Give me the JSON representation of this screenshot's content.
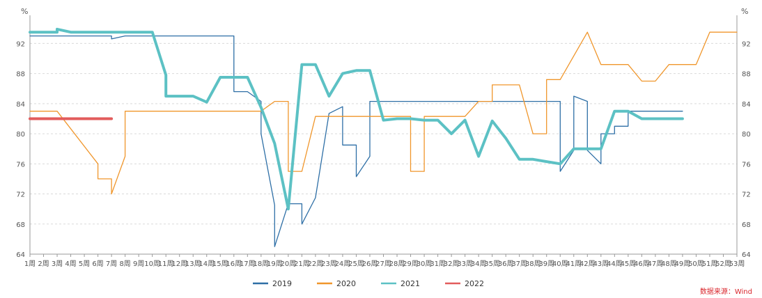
{
  "chart_data": {
    "type": "line",
    "unit_left": "%",
    "unit_right": "%",
    "ylim": [
      64,
      95
    ],
    "y_ticks": [
      64,
      68,
      72,
      76,
      80,
      84,
      88,
      92
    ],
    "x_ticks": [
      "1周",
      "2周",
      "3周",
      "4周",
      "5周",
      "6周",
      "7周",
      "8周",
      "9周",
      "10周",
      "11周",
      "12周",
      "13周",
      "14周",
      "15周",
      "16周",
      "17周",
      "18周",
      "19周",
      "20周",
      "21周",
      "22周",
      "23周",
      "24周",
      "25周",
      "26周",
      "27周",
      "28周",
      "29周",
      "30周",
      "31周",
      "32周",
      "33周",
      "34周",
      "35周",
      "36周",
      "37周",
      "38周",
      "39周",
      "40周",
      "41周",
      "42周",
      "43周",
      "44周",
      "45周",
      "46周",
      "47周",
      "48周",
      "49周",
      "50周",
      "51周",
      "52周",
      "53周"
    ],
    "grid": "horizontal dashed",
    "legend_position": "bottom-center",
    "source": "数据来源：Wind",
    "series": [
      {
        "name": "2019",
        "color": "#2e6fa6",
        "stroke_width": 1.3,
        "points": [
          [
            1,
            93
          ],
          [
            7,
            93
          ],
          [
            7,
            92.6
          ],
          [
            8,
            93
          ],
          [
            16,
            93
          ],
          [
            16,
            85.6
          ],
          [
            17,
            85.6
          ],
          [
            18,
            84.3
          ],
          [
            18,
            80
          ],
          [
            19,
            70.5
          ],
          [
            19,
            65
          ],
          [
            20,
            70.7
          ],
          [
            21,
            70.7
          ],
          [
            21,
            68
          ],
          [
            22,
            71.5
          ],
          [
            23,
            82.7
          ],
          [
            24,
            83.6
          ],
          [
            24,
            78.5
          ],
          [
            25,
            78.5
          ],
          [
            25,
            74.3
          ],
          [
            26,
            77
          ],
          [
            26,
            84.3
          ],
          [
            40,
            84.3
          ],
          [
            40,
            75
          ],
          [
            41,
            77.8
          ],
          [
            41,
            85
          ],
          [
            42,
            84.3
          ],
          [
            42,
            77.8
          ],
          [
            43,
            76
          ],
          [
            43,
            80
          ],
          [
            44,
            80
          ],
          [
            44,
            81
          ],
          [
            45,
            81
          ],
          [
            45,
            83
          ],
          [
            49,
            83
          ]
        ]
      },
      {
        "name": "2020",
        "color": "#f0962b",
        "stroke_width": 1.3,
        "points": [
          [
            1,
            83
          ],
          [
            3,
            83
          ],
          [
            6,
            76
          ],
          [
            6,
            74
          ],
          [
            7,
            74
          ],
          [
            7,
            72
          ],
          [
            8,
            77
          ],
          [
            8,
            83
          ],
          [
            18,
            83
          ],
          [
            19,
            84.3
          ],
          [
            20,
            84.3
          ],
          [
            20,
            75
          ],
          [
            21,
            75
          ],
          [
            22,
            82.3
          ],
          [
            29,
            82.3
          ],
          [
            29,
            75
          ],
          [
            30,
            75
          ],
          [
            30,
            82.3
          ],
          [
            33,
            82.3
          ],
          [
            34,
            84.3
          ],
          [
            35,
            84.3
          ],
          [
            35,
            86.5
          ],
          [
            37,
            86.5
          ],
          [
            38,
            80
          ],
          [
            39,
            80
          ],
          [
            39,
            87.2
          ],
          [
            40,
            87.2
          ],
          [
            42,
            93.5
          ],
          [
            43,
            89.2
          ],
          [
            45,
            89.2
          ],
          [
            46,
            87
          ],
          [
            47,
            87
          ],
          [
            48,
            89.2
          ],
          [
            50,
            89.2
          ],
          [
            51,
            93.5
          ],
          [
            53,
            93.5
          ]
        ]
      },
      {
        "name": "2021",
        "color": "#5cc1c4",
        "stroke_width": 4,
        "points": [
          [
            1,
            93.5
          ],
          [
            3,
            93.5
          ],
          [
            3,
            93.9
          ],
          [
            4,
            93.5
          ],
          [
            10,
            93.5
          ],
          [
            11,
            87.8
          ],
          [
            11,
            85
          ],
          [
            13,
            85
          ],
          [
            14,
            84.2
          ],
          [
            15,
            87.5
          ],
          [
            17,
            87.5
          ],
          [
            18,
            83.5
          ],
          [
            19,
            78.7
          ],
          [
            20,
            70
          ],
          [
            21,
            89.2
          ],
          [
            22,
            89.2
          ],
          [
            23,
            85
          ],
          [
            24,
            88
          ],
          [
            25,
            88.4
          ],
          [
            26,
            88.4
          ],
          [
            27,
            81.8
          ],
          [
            28,
            82
          ],
          [
            29,
            82
          ],
          [
            30,
            81.8
          ],
          [
            31,
            81.8
          ],
          [
            32,
            80
          ],
          [
            33,
            81.8
          ],
          [
            34,
            77
          ],
          [
            35,
            81.7
          ],
          [
            36,
            79.4
          ],
          [
            37,
            76.6
          ],
          [
            38,
            76.6
          ],
          [
            39,
            76.3
          ],
          [
            40,
            76
          ],
          [
            41,
            78
          ],
          [
            42,
            78
          ],
          [
            43,
            78
          ],
          [
            44,
            83
          ],
          [
            45,
            83
          ],
          [
            46,
            82
          ],
          [
            49,
            82
          ]
        ]
      },
      {
        "name": "2022",
        "color": "#e25c5c",
        "stroke_width": 4,
        "points": [
          [
            1,
            82
          ],
          [
            7,
            82
          ]
        ]
      }
    ]
  }
}
